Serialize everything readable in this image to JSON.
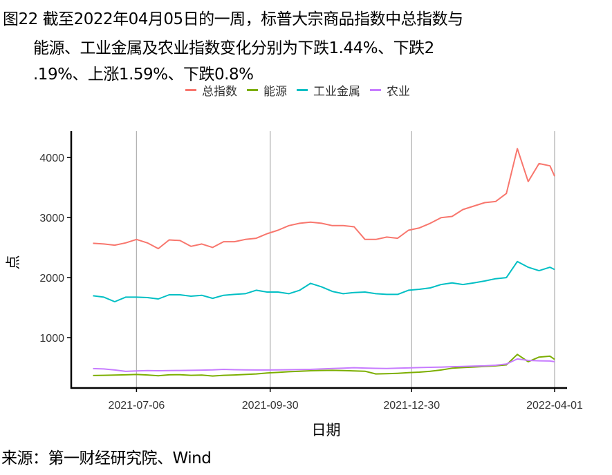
{
  "title_lines": [
    "图22  截至2022年04月05日的一周，标普大宗商品指数中总指数与",
    "能源、工业金属及农业指数变化分别为下跌1.44%、下跌2",
    ".19%、上涨1.59%、下跌0.8%"
  ],
  "source": "来源：第一财经研究院、Wind",
  "chart_data": {
    "type": "line",
    "title": "图22  截至2022年04月05日的一周，标普大宗商品指数中总指数与能源、工业金属及农业指数变化分别为下跌1.44%、下跌2.19%、上涨1.59%、下跌0.8%",
    "xlabel": "日期",
    "ylabel": "点",
    "xlim": [
      "2021-05-25",
      "2022-04-09"
    ],
    "ylim": [
      160,
      4440
    ],
    "xticks": [
      {
        "date": "2021-07-06",
        "label": "2021-07-06"
      },
      {
        "date": "2021-09-30",
        "label": "2021-09-30"
      },
      {
        "date": "2021-12-30",
        "label": "2021-12-30"
      },
      {
        "date": "2022-04-01",
        "label": "2022-04-01"
      }
    ],
    "yticks": [
      1000,
      2000,
      3000,
      4000
    ],
    "grid": "vertical-major",
    "legend_position": "top",
    "x": [
      "2021-06-08",
      "2021-06-15",
      "2021-06-22",
      "2021-06-29",
      "2021-07-06",
      "2021-07-13",
      "2021-07-20",
      "2021-07-27",
      "2021-08-03",
      "2021-08-10",
      "2021-08-17",
      "2021-08-24",
      "2021-08-31",
      "2021-09-07",
      "2021-09-14",
      "2021-09-21",
      "2021-09-28",
      "2021-10-05",
      "2021-10-12",
      "2021-10-19",
      "2021-10-26",
      "2021-11-02",
      "2021-11-09",
      "2021-11-16",
      "2021-11-23",
      "2021-11-30",
      "2021-12-07",
      "2021-12-14",
      "2021-12-21",
      "2021-12-28",
      "2022-01-04",
      "2022-01-11",
      "2022-01-18",
      "2022-01-25",
      "2022-02-01",
      "2022-02-08",
      "2022-02-15",
      "2022-02-22",
      "2022-03-01",
      "2022-03-08",
      "2022-03-15",
      "2022-03-22",
      "2022-03-29",
      "2022-04-01"
    ],
    "series": [
      {
        "name": "总指数",
        "color": "#F8766D",
        "values": [
          2571,
          2560,
          2541,
          2579,
          2636,
          2579,
          2483,
          2628,
          2617,
          2521,
          2560,
          2502,
          2598,
          2598,
          2636,
          2655,
          2732,
          2789,
          2866,
          2905,
          2924,
          2905,
          2866,
          2866,
          2847,
          2636,
          2636,
          2675,
          2655,
          2789,
          2828,
          2905,
          3000,
          3019,
          3134,
          3192,
          3249,
          3268,
          3402,
          4150,
          3600,
          3900,
          3862,
          3690
        ]
      },
      {
        "name": "能源",
        "color": "#7CAE00",
        "values": [
          368,
          372,
          375,
          380,
          385,
          378,
          365,
          380,
          382,
          372,
          375,
          360,
          372,
          378,
          385,
          395,
          410,
          420,
          432,
          440,
          448,
          452,
          455,
          450,
          445,
          440,
          395,
          398,
          405,
          415,
          425,
          440,
          460,
          490,
          500,
          510,
          520,
          529,
          545,
          720,
          598,
          675,
          690,
          637
        ]
      },
      {
        "name": "工业金属",
        "color": "#00BFC4",
        "values": [
          1697,
          1674,
          1598,
          1674,
          1674,
          1667,
          1644,
          1713,
          1713,
          1690,
          1705,
          1655,
          1705,
          1720,
          1732,
          1789,
          1759,
          1759,
          1732,
          1789,
          1904,
          1847,
          1770,
          1732,
          1751,
          1759,
          1732,
          1720,
          1720,
          1789,
          1805,
          1828,
          1885,
          1912,
          1885,
          1912,
          1943,
          1981,
          2000,
          2268,
          2172,
          2115,
          2172,
          2134
        ]
      },
      {
        "name": "农业",
        "color": "#C77CFF",
        "values": [
          483,
          478,
          460,
          437,
          445,
          450,
          448,
          450,
          452,
          455,
          458,
          462,
          471,
          465,
          462,
          460,
          460,
          462,
          465,
          468,
          471,
          478,
          485,
          490,
          498,
          492,
          488,
          485,
          490,
          495,
          500,
          505,
          509,
          515,
          520,
          525,
          529,
          540,
          559,
          644,
          620,
          613,
          610,
          598
        ]
      }
    ]
  }
}
